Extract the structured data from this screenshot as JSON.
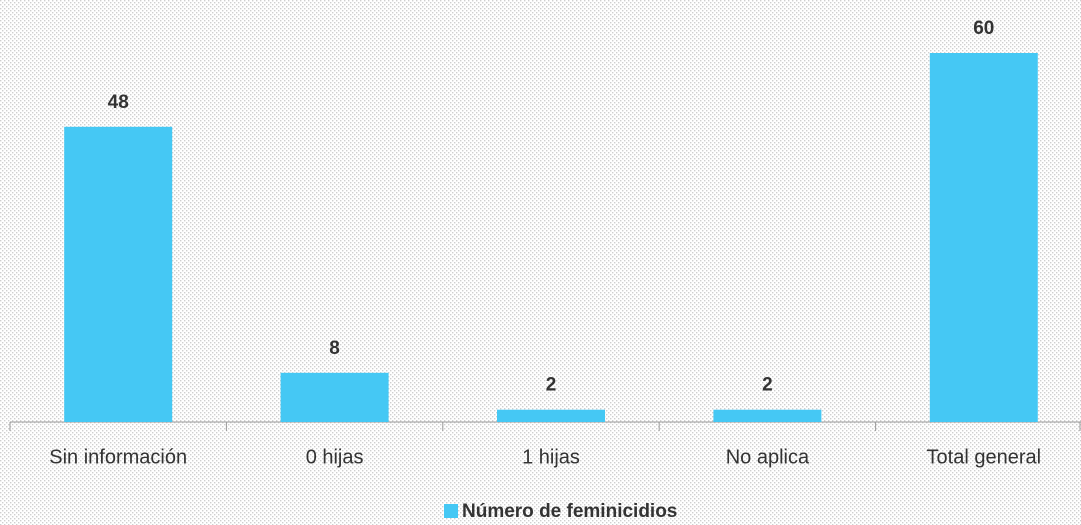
{
  "chart_data": {
    "type": "bar",
    "categories": [
      "Sin información",
      "0 hijas",
      "1 hijas",
      "No aplica",
      "Total general"
    ],
    "series": [
      {
        "name": "Número de feminicidios",
        "color": "#45c8f4",
        "values": [
          48,
          8,
          2,
          2,
          60
        ]
      }
    ]
  }
}
